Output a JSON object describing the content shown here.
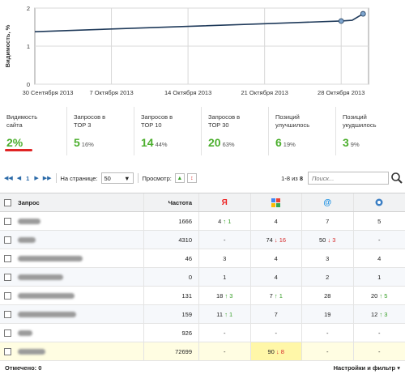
{
  "chart_data": {
    "type": "line",
    "ylabel": "Видимость, %",
    "ylim": [
      0,
      2
    ],
    "yticks": [
      "0",
      "1",
      "2"
    ],
    "xticks": [
      "30 Сентября 2013",
      "7 Октября 2013",
      "14 Октября 2013",
      "21 Октября 2013",
      "28 Октября 2013"
    ],
    "series": [
      {
        "x": [
          "30 Сентября 2013",
          "7 Октября 2013",
          "14 Октября 2013",
          "21 Октября 2013",
          "28 Октября 2013",
          "29 Октября 2013",
          "30 Октября 2013"
        ],
        "values": [
          1.38,
          1.45,
          1.52,
          1.59,
          1.66,
          1.68,
          1.85
        ]
      }
    ],
    "grid": true,
    "line_color": "#1f3a5a",
    "marker_color": "#7fa6cf"
  },
  "stats": [
    {
      "label": "Видимость\nсайта",
      "value": "2%",
      "pct": ""
    },
    {
      "label": "Запросов в\nTOP 3",
      "value": "5",
      "pct": "16%"
    },
    {
      "label": "Запросов в\nTOP 10",
      "value": "14",
      "pct": "44%"
    },
    {
      "label": "Запросов в\nTOP 30",
      "value": "20",
      "pct": "63%"
    },
    {
      "label": "Позиций\nулучшилось",
      "value": "6",
      "pct": "19%"
    },
    {
      "label": "Позиций\nукудшилось",
      "value": "3",
      "pct": "9%"
    }
  ],
  "toolbar": {
    "page": "1",
    "per_page_label": "На странице:",
    "per_page": "50",
    "view_label": "Просмотр:",
    "range_prefix": "1-8 из",
    "range_total": "8",
    "search_placeholder": "Поиск..."
  },
  "table": {
    "headers": {
      "query": "Запрос",
      "freq": "Частота",
      "yandex": "Я"
    },
    "rows": [
      {
        "freq": "1666",
        "y": "4",
        "y_arrow": "↑",
        "y_delta": "1",
        "y_dir": "up",
        "g": "4",
        "g_arrow": "",
        "g_delta": "",
        "g_dir": "",
        "m": "7",
        "m_arrow": "",
        "m_delta": "",
        "m_dir": "",
        "r": "5",
        "r_arrow": "",
        "r_delta": "",
        "r_dir": "",
        "blur_w": 28
      },
      {
        "freq": "4310",
        "y": "-",
        "y_arrow": "",
        "y_delta": "",
        "y_dir": "",
        "g": "74",
        "g_arrow": "↓",
        "g_delta": "16",
        "g_dir": "down",
        "m": "50",
        "m_arrow": "↓",
        "m_delta": "3",
        "m_dir": "down",
        "r": "-",
        "r_arrow": "",
        "r_delta": "",
        "r_dir": "",
        "blur_w": 22
      },
      {
        "freq": "46",
        "y": "3",
        "y_arrow": "",
        "y_delta": "",
        "y_dir": "",
        "g": "4",
        "g_arrow": "",
        "g_delta": "",
        "g_dir": "",
        "m": "3",
        "m_arrow": "",
        "m_delta": "",
        "m_dir": "",
        "r": "4",
        "r_arrow": "",
        "r_delta": "",
        "r_dir": "",
        "blur_w": 80
      },
      {
        "freq": "0",
        "y": "1",
        "y_arrow": "",
        "y_delta": "",
        "y_dir": "",
        "g": "4",
        "g_arrow": "",
        "g_delta": "",
        "g_dir": "",
        "m": "2",
        "m_arrow": "",
        "m_delta": "",
        "m_dir": "",
        "r": "1",
        "r_arrow": "",
        "r_delta": "",
        "r_dir": "",
        "blur_w": 56
      },
      {
        "freq": "131",
        "y": "18",
        "y_arrow": "↑",
        "y_delta": "3",
        "y_dir": "up",
        "g": "7",
        "g_arrow": "↑",
        "g_delta": "1",
        "g_dir": "up",
        "m": "28",
        "m_arrow": "",
        "m_delta": "",
        "m_dir": "",
        "r": "20",
        "r_arrow": "↑",
        "r_delta": "5",
        "r_dir": "up",
        "blur_w": 70
      },
      {
        "freq": "159",
        "y": "11",
        "y_arrow": "↑",
        "y_delta": "1",
        "y_dir": "up",
        "g": "7",
        "g_arrow": "",
        "g_delta": "",
        "g_dir": "",
        "m": "19",
        "m_arrow": "",
        "m_delta": "",
        "m_dir": "",
        "r": "12",
        "r_arrow": "↑",
        "r_delta": "3",
        "r_dir": "up",
        "blur_w": 72
      },
      {
        "freq": "926",
        "y": "-",
        "y_arrow": "",
        "y_delta": "",
        "y_dir": "",
        "g": "-",
        "g_arrow": "",
        "g_delta": "",
        "g_dir": "",
        "m": "-",
        "m_arrow": "",
        "m_delta": "",
        "m_dir": "",
        "r": "-",
        "r_arrow": "",
        "r_delta": "",
        "r_dir": "",
        "blur_w": 18
      },
      {
        "freq": "72699",
        "y": "-",
        "y_arrow": "",
        "y_delta": "",
        "y_dir": "",
        "g": "90",
        "g_arrow": "↓",
        "g_delta": "8",
        "g_dir": "down",
        "m": "-",
        "m_arrow": "",
        "m_delta": "",
        "m_dir": "",
        "r": "-",
        "r_arrow": "",
        "r_delta": "",
        "r_dir": "",
        "blur_w": 34
      }
    ]
  },
  "footer": {
    "selected": "Отмечено: 0",
    "settings": "Настройки и фильтр"
  }
}
